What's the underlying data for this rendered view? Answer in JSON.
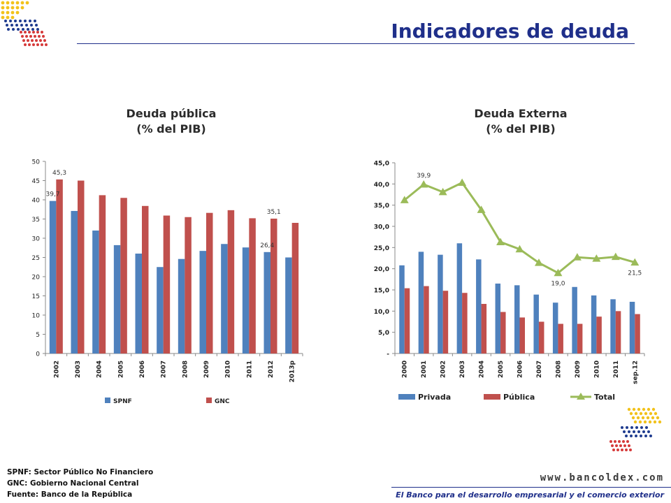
{
  "page": {
    "title": "Indicadores de deuda",
    "footnotes": [
      "SPNF: Sector Público No Financiero",
      "GNC: Gobierno Nacional Central",
      "Fuente: Banco de la República"
    ],
    "website": "www.bancoldex.com",
    "tagline": "El Banco para el desarrollo empresarial y el comercio exterior"
  },
  "colors": {
    "blue_bar": "#4f81bd",
    "red_bar": "#c0504d",
    "green_line": "#9bbb59",
    "title_blue": "#1f2f8a"
  },
  "chart_data": [
    {
      "type": "bar",
      "title": "Deuda pública",
      "subtitle": "(% del PIB)",
      "categories": [
        "2002",
        "2003",
        "2004",
        "2005",
        "2006",
        "2007",
        "2008",
        "2009",
        "2010",
        "2011",
        "2012",
        "2013p"
      ],
      "series": [
        {
          "name": "SPNF",
          "values": [
            39.7,
            37.1,
            32.0,
            28.2,
            26.0,
            22.5,
            24.6,
            26.7,
            28.5,
            27.6,
            26.4,
            25.0
          ],
          "color": "#4f81bd"
        },
        {
          "name": "GNC",
          "values": [
            45.3,
            45.0,
            41.2,
            40.5,
            38.4,
            35.9,
            35.5,
            36.6,
            37.3,
            35.2,
            35.1,
            34.0
          ],
          "color": "#c0504d"
        }
      ],
      "data_labels": [
        {
          "series": "SPNF",
          "category": "2002",
          "text": "39,7"
        },
        {
          "series": "GNC",
          "category": "2002",
          "text": "45,3"
        },
        {
          "series": "SPNF",
          "category": "2012",
          "text": "26,4"
        },
        {
          "series": "GNC",
          "category": "2012",
          "text": "35,1"
        }
      ],
      "ylim": [
        0,
        50
      ],
      "yticks": [
        "0",
        "5",
        "10",
        "15",
        "20",
        "25",
        "30",
        "35",
        "40",
        "45",
        "50"
      ],
      "legend_position": "bottom",
      "grid": false
    },
    {
      "type": "bar+line",
      "title": "Deuda Externa",
      "subtitle": "(% del PIB)",
      "categories": [
        "2000",
        "2001",
        "2002",
        "2003",
        "2004",
        "2005",
        "2006",
        "2007",
        "2008",
        "2009",
        "2010",
        "2011",
        "sep.12"
      ],
      "series": [
        {
          "name": "Privada",
          "kind": "bar",
          "values": [
            20.8,
            24.0,
            23.3,
            26.0,
            22.2,
            16.5,
            16.1,
            13.9,
            12.0,
            15.7,
            13.7,
            12.8,
            12.2
          ],
          "color": "#4f81bd"
        },
        {
          "name": "Pública",
          "kind": "bar",
          "values": [
            15.4,
            15.9,
            14.8,
            14.3,
            11.7,
            9.8,
            8.5,
            7.5,
            7.0,
            7.0,
            8.7,
            10.0,
            9.3
          ],
          "color": "#c0504d"
        },
        {
          "name": "Total",
          "kind": "line",
          "values": [
            36.2,
            39.9,
            38.1,
            40.3,
            33.9,
            26.3,
            24.6,
            21.4,
            19.0,
            22.7,
            22.4,
            22.8,
            21.5
          ],
          "color": "#9bbb59"
        }
      ],
      "data_labels": [
        {
          "series": "Total",
          "category": "2001",
          "text": "39,9"
        },
        {
          "series": "Total",
          "category": "2008",
          "text": "19,0"
        },
        {
          "series": "Total",
          "category": "sep.12",
          "text": "21,5"
        }
      ],
      "ylim": [
        0,
        45
      ],
      "yticks": [
        "-",
        "5,0",
        "10,0",
        "15,0",
        "20,0",
        "25,0",
        "30,0",
        "35,0",
        "40,0",
        "45,0"
      ],
      "legend_position": "bottom",
      "grid": false
    }
  ]
}
